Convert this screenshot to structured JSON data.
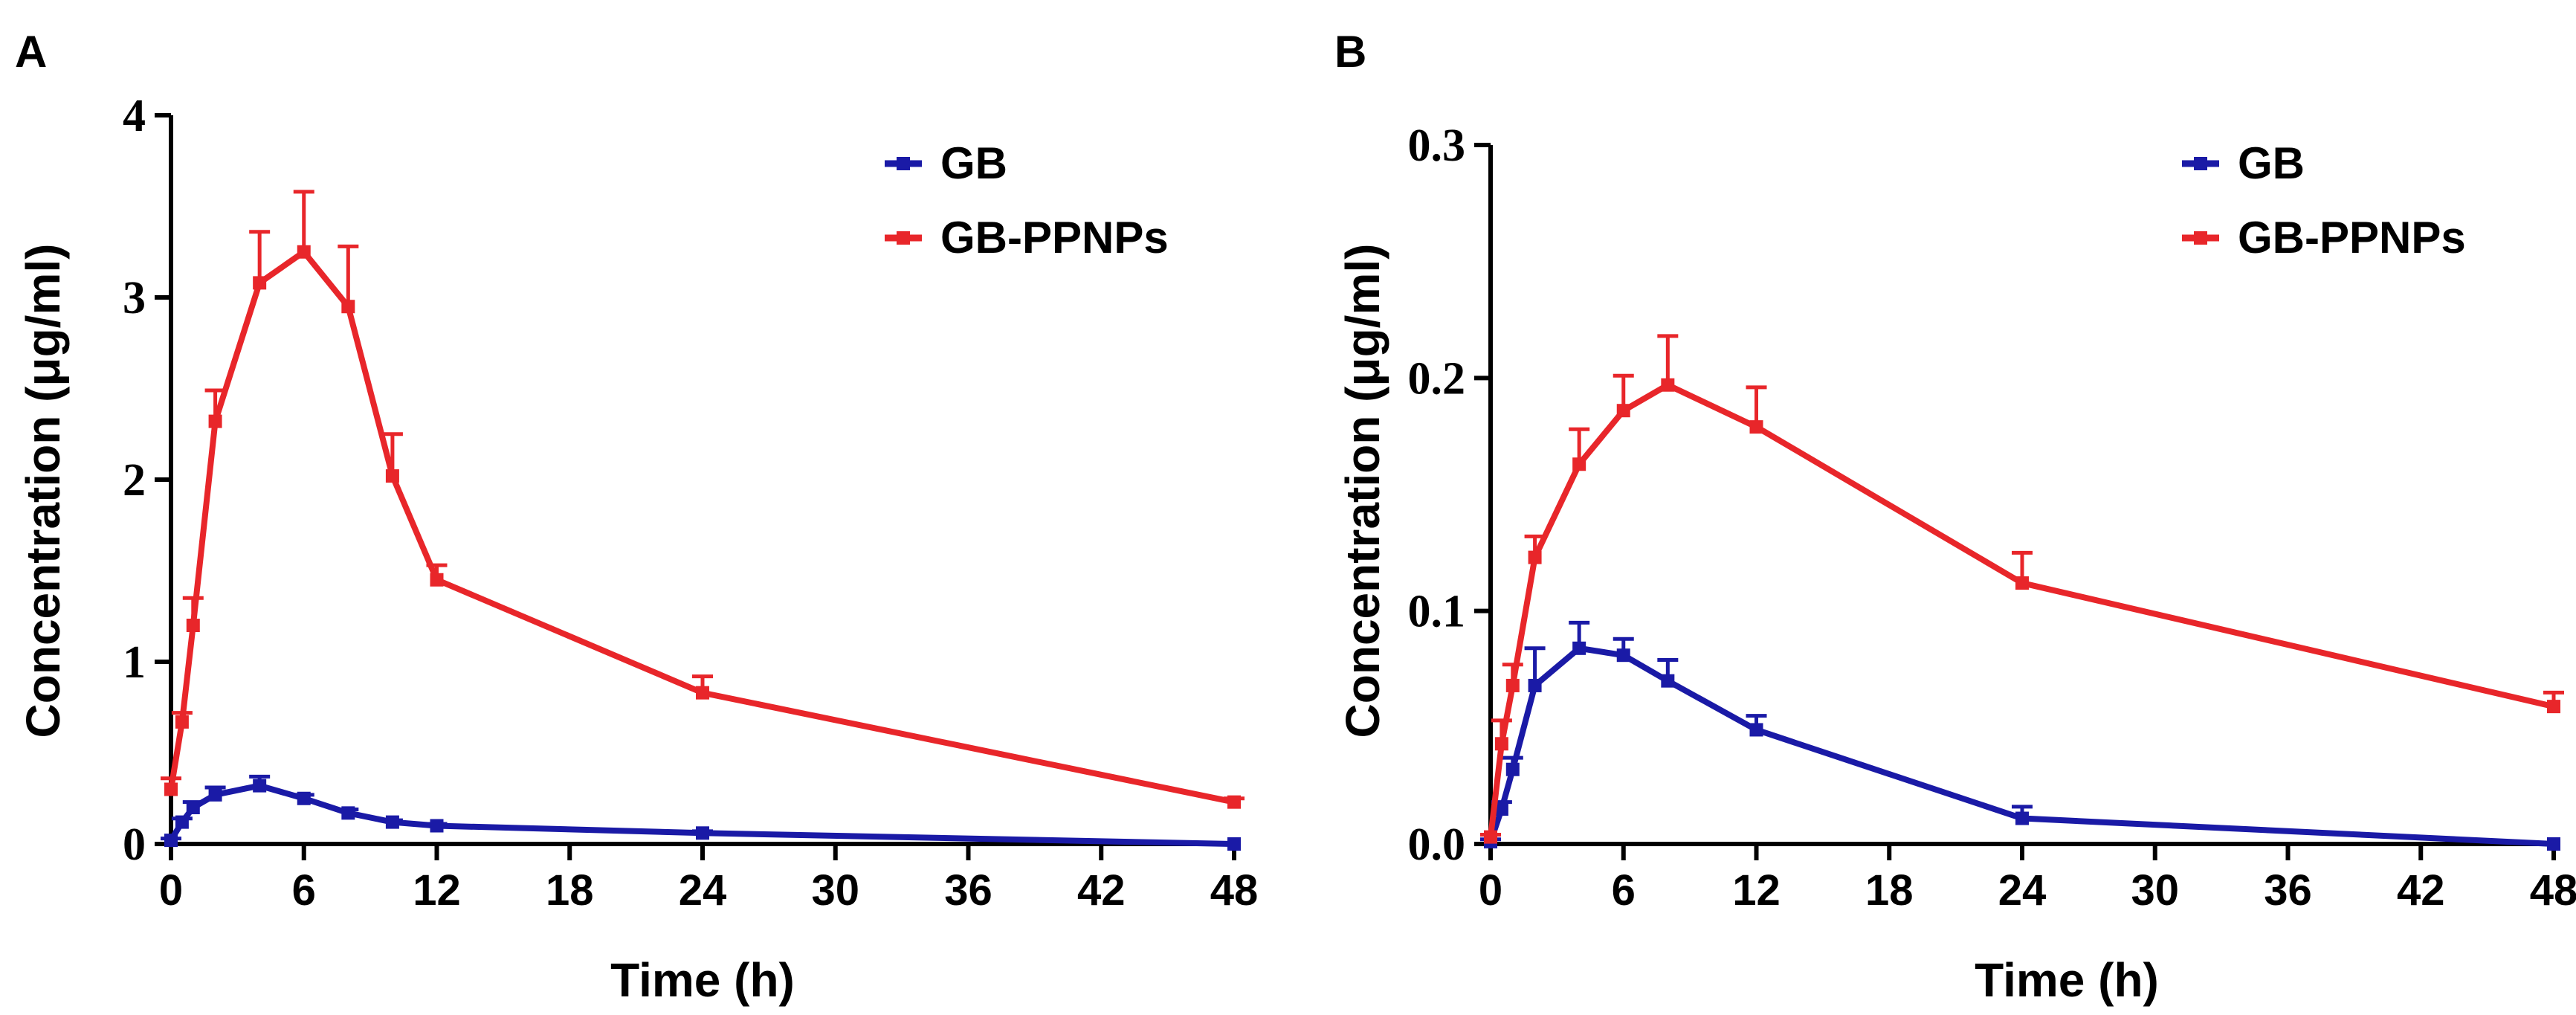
{
  "colors": {
    "gb": "#1a1aa6",
    "gbppnps": "#e8262a",
    "axis": "#000000"
  },
  "chart_data": [
    {
      "panel": "A",
      "type": "line",
      "xlabel": "Time (h)",
      "ylabel": "Concentration (μg/ml)",
      "xlim": [
        0,
        48
      ],
      "ylim": [
        0,
        4
      ],
      "xticks": [
        0,
        6,
        12,
        18,
        24,
        30,
        36,
        42,
        48
      ],
      "xtick_labels": [
        "0",
        "6",
        "12",
        "18",
        "24",
        "30",
        "36",
        "42",
        "48"
      ],
      "yticks": [
        0,
        1,
        2,
        3,
        4
      ],
      "ytick_labels": [
        "0",
        "1",
        "2",
        "3",
        "4"
      ],
      "legend": [
        "GB",
        "GB-PPNPs"
      ],
      "series": [
        {
          "name": "GB",
          "x": [
            0,
            0.5,
            1,
            2,
            4,
            6,
            8,
            10,
            12,
            24,
            48
          ],
          "y": [
            0.02,
            0.12,
            0.2,
            0.27,
            0.32,
            0.25,
            0.17,
            0.12,
            0.1,
            0.06,
            0.0
          ],
          "err": [
            0.01,
            0.02,
            0.03,
            0.04,
            0.05,
            0.02,
            0.02,
            0.01,
            0.01,
            0.01,
            0.0
          ]
        },
        {
          "name": "GB-PPNPs",
          "x": [
            0,
            0.5,
            1,
            2,
            4,
            6,
            8,
            10,
            12,
            24,
            48
          ],
          "y": [
            0.3,
            0.67,
            1.2,
            2.32,
            3.08,
            3.25,
            2.95,
            2.02,
            1.45,
            0.83,
            0.23
          ],
          "err": [
            0.06,
            0.05,
            0.15,
            0.17,
            0.28,
            0.33,
            0.33,
            0.23,
            0.08,
            0.09,
            0.02
          ]
        }
      ]
    },
    {
      "panel": "B",
      "type": "line",
      "xlabel": "Time (h)",
      "ylabel": "Concentration (μg/ml)",
      "xlim": [
        0,
        48
      ],
      "ylim": [
        0,
        0.3
      ],
      "xticks": [
        0,
        6,
        12,
        18,
        24,
        30,
        36,
        42,
        48
      ],
      "xtick_labels": [
        "0",
        "6",
        "12",
        "18",
        "24",
        "30",
        "36",
        "42",
        "48"
      ],
      "yticks": [
        0,
        0.1,
        0.2,
        0.3
      ],
      "ytick_labels": [
        "0.0",
        "0.1",
        "0.2",
        "0.3"
      ],
      "legend": [
        "GB",
        "GB-PPNPs"
      ],
      "series": [
        {
          "name": "GB",
          "x": [
            0,
            0.5,
            1,
            2,
            4,
            6,
            8,
            12,
            24,
            48
          ],
          "y": [
            0.001,
            0.015,
            0.032,
            0.068,
            0.084,
            0.081,
            0.07,
            0.049,
            0.011,
            0.0
          ],
          "err": [
            0.001,
            0.003,
            0.005,
            0.016,
            0.011,
            0.007,
            0.009,
            0.006,
            0.005,
            0.0
          ]
        },
        {
          "name": "GB-PPNPs",
          "x": [
            0,
            0.5,
            1,
            2,
            4,
            6,
            8,
            12,
            24,
            48
          ],
          "y": [
            0.003,
            0.043,
            0.068,
            0.123,
            0.163,
            0.186,
            0.197,
            0.179,
            0.112,
            0.059
          ],
          "err": [
            0.001,
            0.01,
            0.009,
            0.009,
            0.015,
            0.015,
            0.021,
            0.017,
            0.013,
            0.006
          ]
        }
      ]
    }
  ]
}
